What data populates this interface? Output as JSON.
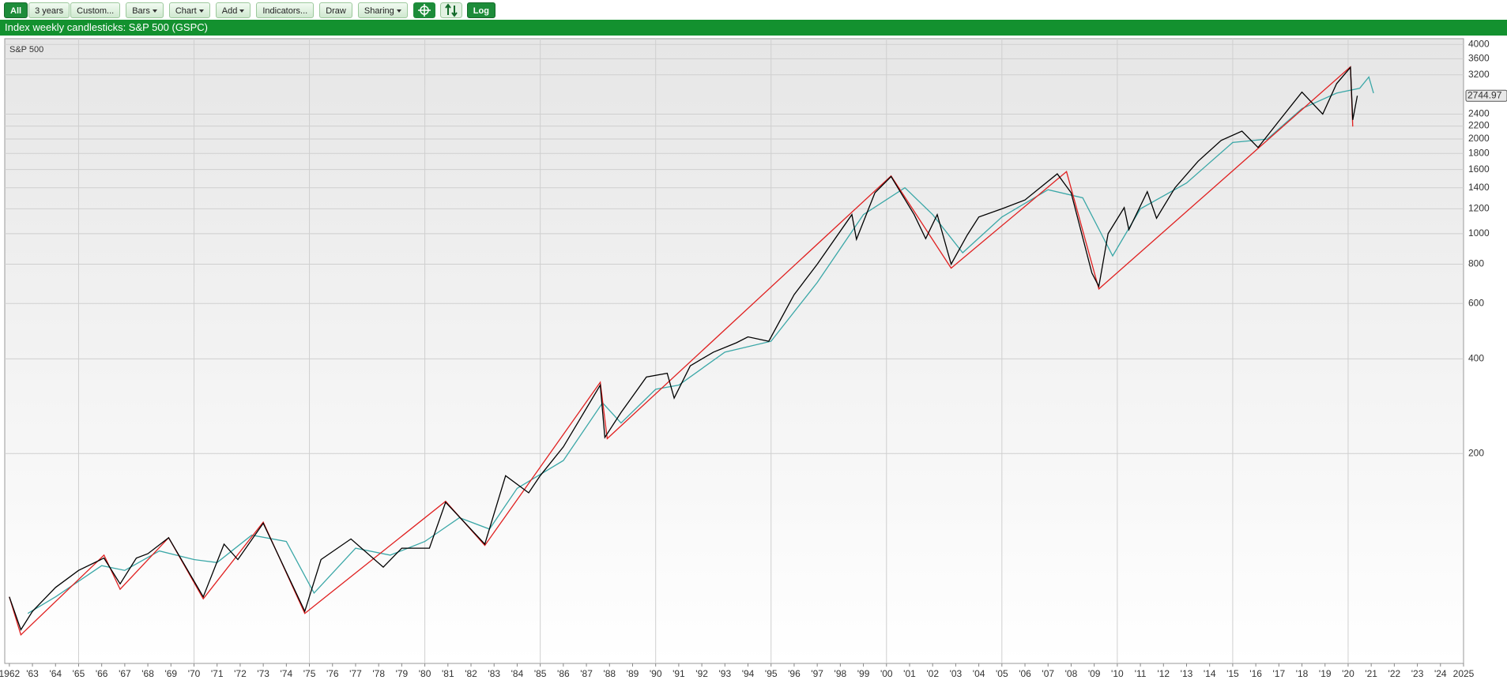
{
  "toolbar": [
    "All",
    "3 years",
    "Custom...",
    "Bars",
    "Chart",
    "Add",
    "Indicators...",
    "Draw",
    "Sharing",
    "Log"
  ],
  "header": "Index weekly candlesticks: S&P 500 (GSPC)",
  "chart_data": {
    "type": "line",
    "title": "S&P 500",
    "log_scale": true,
    "grid": true,
    "xlim": [
      1961.8,
      2025
    ],
    "ylim": [
      43,
      4170
    ],
    "yticks": [
      200,
      400,
      600,
      800,
      1000,
      1200,
      1400,
      1600,
      1800,
      2000,
      2200,
      2400,
      3200,
      3600,
      4000
    ],
    "xticks": [
      1962,
      {
        "value": 1963,
        "label": "'63"
      },
      {
        "value": 1964,
        "label": "'64"
      },
      {
        "value": 1965,
        "label": "'65"
      },
      {
        "value": 1966,
        "label": "'66"
      },
      {
        "value": 1967,
        "label": "'67"
      },
      {
        "value": 1968,
        "label": "'68"
      },
      {
        "value": 1969,
        "label": "'69"
      },
      {
        "value": 1970,
        "label": "'70"
      },
      {
        "value": 1971,
        "label": "'71"
      },
      {
        "value": 1972,
        "label": "'72"
      },
      {
        "value": 1973,
        "label": "'73"
      },
      {
        "value": 1974,
        "label": "'74"
      },
      {
        "value": 1975,
        "label": "'75"
      },
      {
        "value": 1976,
        "label": "'76"
      },
      {
        "value": 1977,
        "label": "'77"
      },
      {
        "value": 1978,
        "label": "'78"
      },
      {
        "value": 1979,
        "label": "'79"
      },
      {
        "value": 1980,
        "label": "'80"
      },
      {
        "value": 1981,
        "label": "'81"
      },
      {
        "value": 1982,
        "label": "'82"
      },
      {
        "value": 1983,
        "label": "'83"
      },
      {
        "value": 1984,
        "label": "'84"
      },
      {
        "value": 1985,
        "label": "'85"
      },
      {
        "value": 1986,
        "label": "'86"
      },
      {
        "value": 1987,
        "label": "'87"
      },
      {
        "value": 1988,
        "label": "'88"
      },
      {
        "value": 1989,
        "label": "'89"
      },
      {
        "value": 1990,
        "label": "'90"
      },
      {
        "value": 1991,
        "label": "'91"
      },
      {
        "value": 1992,
        "label": "'92"
      },
      {
        "value": 1993,
        "label": "'93"
      },
      {
        "value": 1994,
        "label": "'94"
      },
      {
        "value": 1995,
        "label": "'95"
      },
      {
        "value": 1996,
        "label": "'96"
      },
      {
        "value": 1997,
        "label": "'97"
      },
      {
        "value": 1998,
        "label": "'98"
      },
      {
        "value": 1999,
        "label": "'99"
      },
      {
        "value": 2000,
        "label": "'00"
      },
      {
        "value": 2001,
        "label": "'01"
      },
      {
        "value": 2002,
        "label": "'02"
      },
      {
        "value": 2003,
        "label": "'03"
      },
      {
        "value": 2004,
        "label": "'04"
      },
      {
        "value": 2005,
        "label": "'05"
      },
      {
        "value": 2006,
        "label": "'06"
      },
      {
        "value": 2007,
        "label": "'07"
      },
      {
        "value": 2008,
        "label": "'08"
      },
      {
        "value": 2009,
        "label": "'09"
      },
      {
        "value": 2010,
        "label": "'10"
      },
      {
        "value": 2011,
        "label": "'11"
      },
      {
        "value": 2012,
        "label": "'12"
      },
      {
        "value": 2013,
        "label": "'13"
      },
      {
        "value": 2014,
        "label": "'14"
      },
      {
        "value": 2015,
        "label": "'15"
      },
      {
        "value": 2016,
        "label": "'16"
      },
      {
        "value": 2017,
        "label": "'17"
      },
      {
        "value": 2018,
        "label": "'18"
      },
      {
        "value": 2019,
        "label": "'19"
      },
      {
        "value": 2020,
        "label": "'20"
      },
      {
        "value": 2021,
        "label": "'21"
      },
      {
        "value": 2022,
        "label": "'22"
      },
      {
        "value": 2023,
        "label": "'23"
      },
      {
        "value": 2024,
        "label": "'24"
      },
      2025
    ],
    "last_value": 2744.97,
    "series": [
      {
        "color": "#3aa7a7",
        "x": [
          1962.8,
          1964,
          1966,
          1967,
          1968.5,
          1970,
          1971,
          1972.5,
          1974,
          1975.2,
          1977,
          1978.5,
          1980,
          1981.5,
          1982.8,
          1984,
          1986,
          1987.7,
          1988.5,
          1990,
          1991,
          1993,
          1995,
          1997,
          1999,
          2000.8,
          2002,
          2003.3,
          2005,
          2007,
          2008.5,
          2009.8,
          2011,
          2013,
          2015,
          2016.5,
          2018,
          2019.5,
          2020.5,
          2020.9,
          2021.1
        ],
        "values": [
          62,
          70,
          88,
          85,
          98,
          92,
          90,
          110,
          105,
          72,
          100,
          95,
          105,
          125,
          115,
          155,
          190,
          290,
          250,
          320,
          330,
          420,
          455,
          700,
          1150,
          1400,
          1150,
          870,
          1130,
          1380,
          1300,
          850,
          1200,
          1450,
          1950,
          2000,
          2500,
          2800,
          2900,
          3150,
          2800
        ]
      },
      {
        "color": "#e02020",
        "x": [
          1962.0,
          1962.5,
          1966.1,
          1966.8,
          1968.9,
          1970.4,
          1973.0,
          1974.8,
          1980.9,
          1982.6,
          1987.6,
          1987.9,
          2000.2,
          2002.8,
          2007.8,
          2009.2,
          2020.1,
          2020.2
        ],
        "values": [
          70,
          53,
          95,
          74,
          108,
          69,
          121,
          62,
          141,
          102,
          337,
          223,
          1527,
          777,
          1576,
          667,
          3394,
          2192
        ]
      },
      {
        "color": "#000000",
        "x": [
          1962.0,
          1962.5,
          1963,
          1964,
          1965,
          1966.1,
          1966.8,
          1967.5,
          1968,
          1968.9,
          1970.4,
          1971.3,
          1971.9,
          1973,
          1974.8,
          1975.5,
          1976.8,
          1978.2,
          1979,
          1980.2,
          1980.9,
          1982.6,
          1983.5,
          1984.5,
          1985,
          1986,
          1987.6,
          1987.8,
          1988.5,
          1989.6,
          1990.5,
          1990.8,
          1991.5,
          1992.5,
          1993.5,
          1994,
          1994.9,
          1996,
          1997,
          1998.5,
          1998.7,
          1999.5,
          2000.2,
          2001.2,
          2001.7,
          2002.2,
          2002.8,
          2003.5,
          2004,
          2005,
          2006,
          2007.4,
          2008,
          2008.9,
          2009.2,
          2009.6,
          2010.3,
          2010.5,
          2011.3,
          2011.7,
          2012.5,
          2013.5,
          2014.5,
          2015.4,
          2016.1,
          2017,
          2018,
          2018.9,
          2019.5,
          2020.1,
          2020.2,
          2020.4
        ],
        "values": [
          70,
          55,
          63,
          75,
          85,
          93,
          77,
          93,
          96,
          108,
          70,
          103,
          92,
          120,
          63,
          92,
          107,
          87,
          100,
          100,
          140,
          103,
          170,
          150,
          170,
          210,
          330,
          225,
          270,
          350,
          360,
          300,
          380,
          420,
          450,
          470,
          455,
          640,
          800,
          1150,
          960,
          1350,
          1520,
          1150,
          965,
          1150,
          800,
          990,
          1130,
          1200,
          1280,
          1550,
          1350,
          750,
          680,
          1000,
          1210,
          1030,
          1360,
          1120,
          1400,
          1700,
          1980,
          2120,
          1880,
          2280,
          2820,
          2400,
          3000,
          3380,
          2300,
          2744.97
        ]
      }
    ]
  }
}
